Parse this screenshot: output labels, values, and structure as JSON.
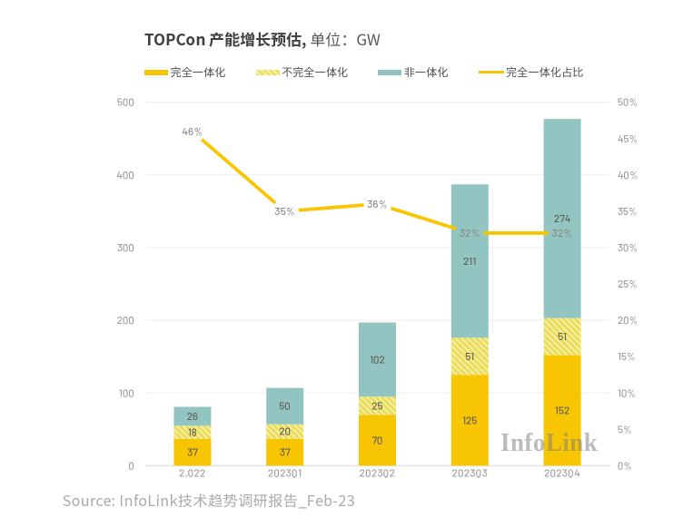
{
  "title": {
    "main": "TOPCon 产能增长预估,",
    "unit": " 单位：GW"
  },
  "legend": {
    "items": [
      {
        "key": "fully-integrated",
        "label": "完全一体化",
        "swatch": "bar-solid",
        "color": "#f8c503"
      },
      {
        "key": "partially-integrated",
        "label": "不完全一体化",
        "swatch": "bar-hatched",
        "color": "#f0e385"
      },
      {
        "key": "non-integrated",
        "label": "非一体化",
        "swatch": "bar-solid",
        "color": "#92c5c1"
      },
      {
        "key": "fully-integrated-share",
        "label": "完全一体化占比",
        "swatch": "line",
        "color": "#f8c503"
      }
    ]
  },
  "watermark": {
    "text": "InfoLink"
  },
  "source": {
    "text": "Source: InfoLink技术趋势调研报告_Feb-23"
  },
  "chart_data": {
    "type": "bar",
    "subtype": "stacked-bars-with-line",
    "title": "TOPCon 产能增长预估, 单位：GW",
    "categories": [
      "2,022",
      "2023Q1",
      "2023Q2",
      "2023Q3",
      "2023Q4"
    ],
    "series": [
      {
        "name": "完全一体化",
        "type": "bar",
        "color": "#f8c503",
        "values": [
          37,
          37,
          70,
          125,
          152
        ]
      },
      {
        "name": "不完全一体化",
        "type": "bar",
        "color": "#f0e385",
        "pattern": "diagonal-hatch",
        "values": [
          18,
          20,
          25,
          51,
          51
        ]
      },
      {
        "name": "非一体化",
        "type": "bar",
        "color": "#92c5c1",
        "values": [
          26,
          50,
          102,
          211,
          274
        ]
      },
      {
        "name": "完全一体化占比",
        "type": "line",
        "color": "#f8c503",
        "axis": "right",
        "unit": "%",
        "values": [
          46,
          35,
          36,
          32,
          32
        ]
      }
    ],
    "stacked": true,
    "left_axis": {
      "min": 0,
      "max": 500,
      "step": 100,
      "ticks": [
        "0",
        "100",
        "200",
        "300",
        "400",
        "500"
      ]
    },
    "right_axis": {
      "min": 0,
      "max": 50,
      "step": 5,
      "unit": "%",
      "ticks": [
        "0%",
        "5%",
        "10%",
        "15%",
        "20%",
        "25%",
        "30%",
        "35%",
        "40%",
        "45%",
        "50%"
      ]
    },
    "grid": "horizontal at left-axis major steps",
    "legend_position": "top-left"
  }
}
